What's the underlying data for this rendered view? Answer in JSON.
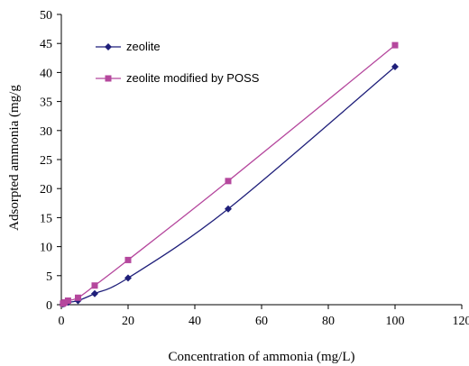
{
  "chart_data": {
    "type": "scatter",
    "xlabel": "Concentration of ammonia (mg/L)",
    "ylabel": "Adsorpted ammonia (mg/g",
    "xlim": [
      0,
      120
    ],
    "ylim": [
      0,
      50
    ],
    "xticks": [
      0,
      20,
      40,
      60,
      80,
      100,
      120
    ],
    "yticks": [
      0,
      5,
      10,
      15,
      20,
      25,
      30,
      35,
      40,
      45,
      50
    ],
    "grid": false,
    "legend_position": "top-left",
    "series": [
      {
        "name": "zeolite",
        "color": "#1f1f7a",
        "marker": "diamond",
        "x": [
          0.5,
          1,
          2,
          5,
          10,
          20,
          50,
          100
        ],
        "y": [
          0.1,
          0.2,
          0.4,
          0.7,
          1.9,
          4.6,
          16.5,
          41.0
        ]
      },
      {
        "name": "zeolite modified by POSS",
        "color": "#b5479d",
        "marker": "square",
        "x": [
          0.5,
          1,
          2,
          5,
          10,
          20,
          50,
          100
        ],
        "y": [
          0.2,
          0.4,
          0.7,
          1.2,
          3.3,
          7.7,
          21.3,
          44.7
        ]
      }
    ]
  }
}
